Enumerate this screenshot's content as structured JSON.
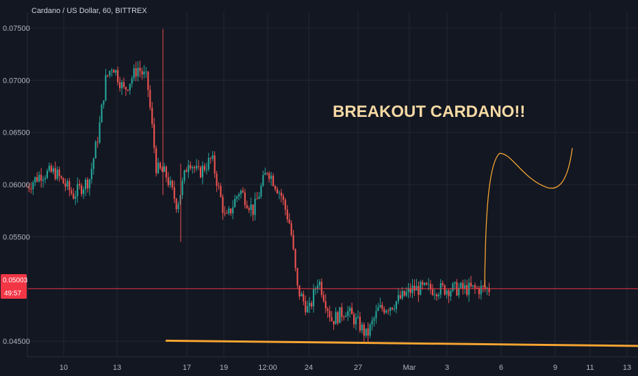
{
  "header": {
    "symbol_title": "Cardano / US Dollar, 60, BITTREX"
  },
  "annotation": {
    "text": "BREAKOUT CARDANO!!",
    "color": "#f5d9a4"
  },
  "price_tag": {
    "price": "0.05003",
    "countdown": "49:57",
    "color": "#f23645"
  },
  "colors": {
    "background": "#131722",
    "grid": "#242733",
    "up": "#26a69a",
    "down": "#ef5350",
    "trendline": "#f7a531",
    "projection": "#f7a531",
    "price_line": "#f23645"
  },
  "chart_data": {
    "type": "candlestick",
    "title": "Cardano / US Dollar, 60, BITTREX",
    "ylim": [
      0.0435,
      0.0765
    ],
    "yticks": [
      0.045,
      0.055,
      0.06,
      0.065,
      0.07,
      0.075
    ],
    "ytick_labels": [
      "0.04500",
      "0.05500",
      "0.06000",
      "0.06500",
      "0.07000",
      "0.07500"
    ],
    "xticks": [
      "10",
      "13",
      "17",
      "19",
      "12:00",
      "24",
      "27",
      "Mar",
      "3",
      "6",
      "9",
      "11",
      "13"
    ],
    "price_line": 0.05003,
    "series_anchors": [
      {
        "t": 0,
        "price": 0.0598
      },
      {
        "t": 0.03,
        "price": 0.061
      },
      {
        "t": 0.06,
        "price": 0.0612
      },
      {
        "t": 0.1,
        "price": 0.059
      },
      {
        "t": 0.135,
        "price": 0.0605
      },
      {
        "t": 0.155,
        "price": 0.065
      },
      {
        "t": 0.17,
        "price": 0.07
      },
      {
        "t": 0.185,
        "price": 0.0715
      },
      {
        "t": 0.21,
        "price": 0.069
      },
      {
        "t": 0.24,
        "price": 0.0712
      },
      {
        "t": 0.26,
        "price": 0.07
      },
      {
        "t": 0.28,
        "price": 0.0615
      },
      {
        "t": 0.3,
        "price": 0.061
      },
      {
        "t": 0.325,
        "price": 0.058
      },
      {
        "t": 0.35,
        "price": 0.0625
      },
      {
        "t": 0.37,
        "price": 0.061
      },
      {
        "t": 0.4,
        "price": 0.0625
      },
      {
        "t": 0.43,
        "price": 0.0565
      },
      {
        "t": 0.46,
        "price": 0.0595
      },
      {
        "t": 0.49,
        "price": 0.0575
      },
      {
        "t": 0.52,
        "price": 0.0615
      },
      {
        "t": 0.55,
        "price": 0.059
      },
      {
        "t": 0.57,
        "price": 0.056
      },
      {
        "t": 0.585,
        "price": 0.05
      },
      {
        "t": 0.61,
        "price": 0.0478
      },
      {
        "t": 0.63,
        "price": 0.051
      },
      {
        "t": 0.66,
        "price": 0.047
      },
      {
        "t": 0.69,
        "price": 0.048
      },
      {
        "t": 0.72,
        "price": 0.0465
      },
      {
        "t": 0.735,
        "price": 0.0455
      },
      {
        "t": 0.76,
        "price": 0.048
      },
      {
        "t": 0.79,
        "price": 0.0485
      },
      {
        "t": 0.82,
        "price": 0.0495
      },
      {
        "t": 0.835,
        "price": 0.05
      }
    ],
    "trendline": {
      "start": {
        "x_tick": "17",
        "price": 0.04505
      },
      "end": {
        "x_tick": "13",
        "price": 0.04455
      }
    },
    "projection_points": [
      0.0502,
      0.06,
      0.063,
      0.0617,
      0.06,
      0.0597,
      0.061,
      0.0635
    ]
  }
}
